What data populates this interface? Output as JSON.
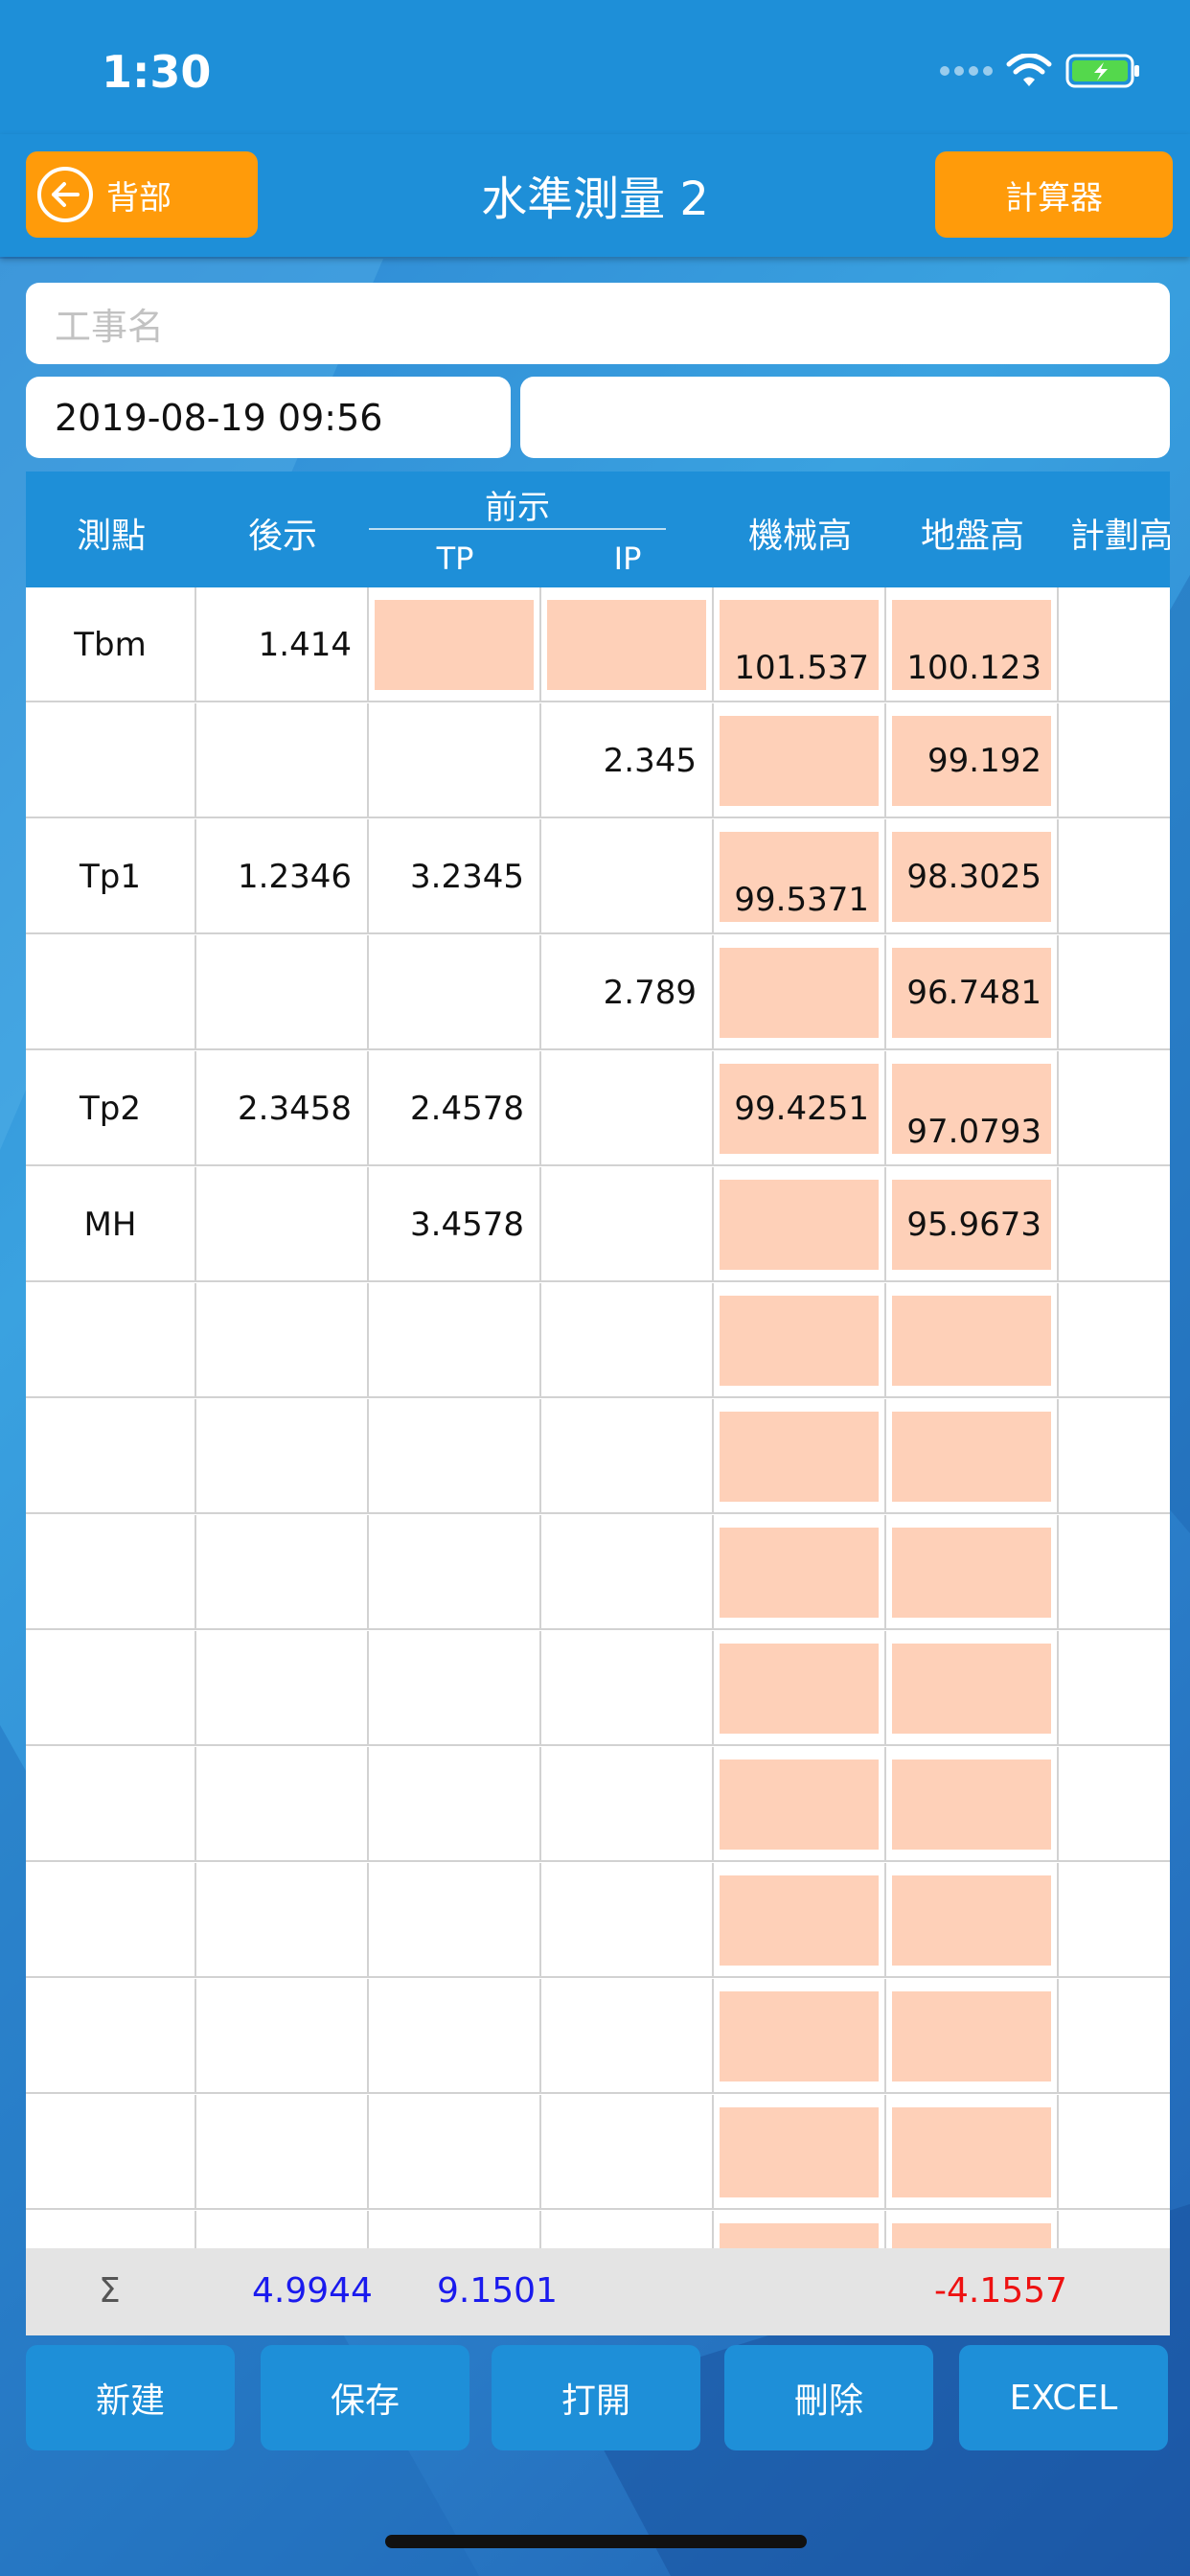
{
  "status": {
    "time": "1:30"
  },
  "nav": {
    "back_label": "背部",
    "title": "水準測量 2",
    "calc_label": "計算器"
  },
  "form": {
    "name_placeholder": "工事名",
    "date": "2019-08-19 09:56",
    "extra": ""
  },
  "table": {
    "headers": {
      "point": "測點",
      "backsight": "後示",
      "foresight": "前示",
      "tp": "TP",
      "ip": "IP",
      "hi": "機械高",
      "ground": "地盤高",
      "plan": "計劃高"
    },
    "rows": [
      {
        "point": "Tbm",
        "bs": "1.414",
        "tp": "",
        "ip": "",
        "hi": "101.537",
        "gl": "100.123"
      },
      {
        "point": "",
        "bs": "",
        "tp": "",
        "ip": "2.345",
        "hi": "",
        "gl": "99.192"
      },
      {
        "point": "Tp1",
        "bs": "1.2346",
        "tp": "3.2345",
        "ip": "",
        "hi": "99.5371",
        "gl": "98.3025"
      },
      {
        "point": "",
        "bs": "",
        "tp": "",
        "ip": "2.789",
        "hi": "",
        "gl": "96.7481"
      },
      {
        "point": "Tp2",
        "bs": "2.3458",
        "tp": "2.4578",
        "ip": "",
        "hi": "99.4251",
        "gl": "97.0793"
      },
      {
        "point": "MH",
        "bs": "",
        "tp": "3.4578",
        "ip": "",
        "hi": "",
        "gl": "95.9673"
      }
    ],
    "empty_rows": 9
  },
  "summary": {
    "sigma": "Σ",
    "bs_total": "4.9944",
    "tp_total": "9.1501",
    "diff": "-4.1557"
  },
  "toolbar": {
    "new": "新建",
    "save": "保存",
    "open": "打開",
    "delete": "刪除",
    "excel": "EXCEL"
  },
  "colors": {
    "blue": "#1e8fd8",
    "orange": "#ff9b0a",
    "pink": "#fed0b8",
    "sum_blue": "#1a1aee",
    "sum_red": "#ee1111"
  }
}
